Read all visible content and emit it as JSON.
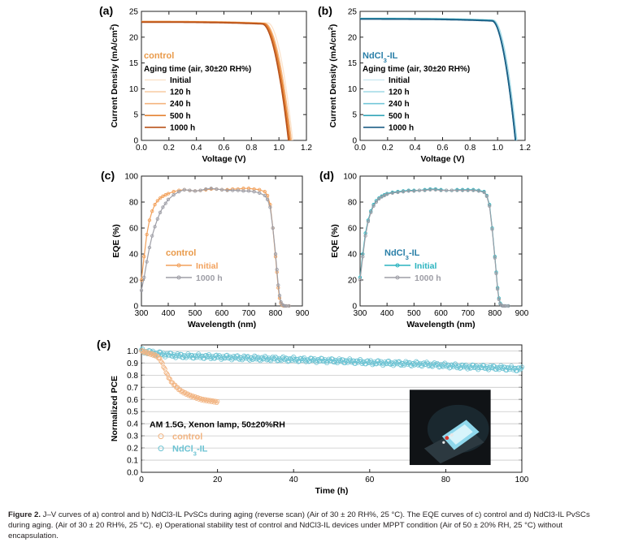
{
  "caption": {
    "label": "Figure 2.",
    "text": "J–V curves of a) control and b) NdCl3-IL PvSCs during aging (reverse scan) (Air of 30 ± 20 RH%, 25 °C). The EQE curves of c) control and d) NdCl3-IL PvSCs during aging. (Air of 30 ± 20 RH%, 25 °C). e) Operational stability test of control and NdCl3-IL devices under MPPT condition (Air of 50 ± 20% RH, 25 °C) without encapsulation."
  },
  "colors": {
    "control_aging": [
      "#fbe3cc",
      "#f8cfa8",
      "#f4b47e",
      "#e4802f",
      "#b9521a"
    ],
    "ndcl_aging": [
      "#cfeaf2",
      "#a6dbe7",
      "#73c7d8",
      "#2fa3b7",
      "#1d5f86"
    ],
    "eqe_control_initial": "#f2a15c",
    "eqe_ndcl_initial": "#2ab3bf",
    "eqe_1000h": "#9e9ea6",
    "mppt_control": "#f2b583",
    "mppt_ndcl": "#6cc3d3",
    "control_label": "#e99a4a",
    "ndcl_label": "#2a7fa8"
  },
  "chart_data": [
    {
      "panel": "(a)",
      "type": "line",
      "xlabel": "Voltage (V)",
      "ylabel": "Current Density (mA/cm²)",
      "xlim": [
        0.0,
        1.2
      ],
      "ylim": [
        0,
        25
      ],
      "xticks": [
        "0.0",
        "0.2",
        "0.4",
        "0.6",
        "0.8",
        "1.0",
        "1.2"
      ],
      "yticks": [
        "0",
        "5",
        "10",
        "15",
        "20",
        "25"
      ],
      "device_label": "control",
      "legend_title": "Aging time (air, 30±20 RH%)",
      "series": [
        {
          "name": "Initial",
          "jsc": 23.1,
          "voc": 1.1,
          "knee": 0.92
        },
        {
          "name": "120 h",
          "jsc": 23.0,
          "voc": 1.09,
          "knee": 0.9
        },
        {
          "name": "240 h",
          "jsc": 23.0,
          "voc": 1.09,
          "knee": 0.9
        },
        {
          "name": "500 h",
          "jsc": 23.0,
          "voc": 1.08,
          "knee": 0.89
        },
        {
          "name": "1000 h",
          "jsc": 22.9,
          "voc": 1.07,
          "knee": 0.88
        }
      ]
    },
    {
      "panel": "(b)",
      "type": "line",
      "xlabel": "Voltage (V)",
      "ylabel": "Current Density (mA/cm²)",
      "xlim": [
        0.0,
        1.2
      ],
      "ylim": [
        0,
        25
      ],
      "xticks": [
        "0.0",
        "0.2",
        "0.4",
        "0.6",
        "0.8",
        "1.0",
        "1.2"
      ],
      "yticks": [
        "0",
        "5",
        "10",
        "15",
        "20",
        "25"
      ],
      "device_label": "NdCl3-IL",
      "legend_title": "Aging time (air, 30±20 RH%)",
      "series": [
        {
          "name": "Initial",
          "jsc": 23.7,
          "voc": 1.14,
          "knee": 0.97
        },
        {
          "name": "120 h",
          "jsc": 23.6,
          "voc": 1.14,
          "knee": 0.97
        },
        {
          "name": "240 h",
          "jsc": 23.6,
          "voc": 1.13,
          "knee": 0.96
        },
        {
          "name": "500 h",
          "jsc": 23.6,
          "voc": 1.13,
          "knee": 0.96
        },
        {
          "name": "1000 h",
          "jsc": 23.5,
          "voc": 1.13,
          "knee": 0.96
        }
      ]
    },
    {
      "panel": "(c)",
      "type": "line",
      "xlabel": "Wavelength (nm)",
      "ylabel": "EQE (%)",
      "xlim": [
        300,
        900
      ],
      "ylim": [
        0,
        100
      ],
      "xticks": [
        "300",
        "400",
        "500",
        "600",
        "700",
        "800",
        "900"
      ],
      "yticks": [
        "0",
        "20",
        "40",
        "60",
        "80",
        "100"
      ],
      "device_label": "control",
      "x": [
        300,
        310,
        320,
        330,
        340,
        350,
        360,
        370,
        380,
        390,
        400,
        420,
        440,
        460,
        480,
        500,
        520,
        540,
        560,
        580,
        600,
        620,
        640,
        660,
        680,
        700,
        720,
        740,
        760,
        770,
        780,
        790,
        800,
        805,
        810,
        815,
        820,
        825,
        830,
        835,
        840,
        850
      ],
      "series": [
        {
          "name": "Initial",
          "values": [
            20,
            38,
            55,
            66,
            73,
            78,
            81,
            83,
            84.5,
            85.5,
            86.5,
            88,
            89,
            89.5,
            89,
            88.5,
            89,
            89.5,
            90,
            90,
            89.5,
            89.5,
            90,
            90,
            90.5,
            90.5,
            90,
            89.5,
            88,
            85,
            78,
            60,
            38,
            26,
            14,
            6,
            2,
            0.5,
            0,
            0,
            0,
            0
          ]
        },
        {
          "name": "1000 h",
          "values": [
            12,
            22,
            34,
            45,
            54,
            61,
            67,
            72,
            76,
            79,
            82,
            85.5,
            88,
            89.5,
            89,
            88.5,
            89,
            90,
            90.5,
            90,
            89.5,
            89,
            89,
            89,
            88.5,
            88.5,
            88,
            87,
            85,
            82,
            76,
            60,
            40,
            28,
            16,
            8,
            3,
            1,
            0.3,
            0,
            0,
            0
          ]
        }
      ]
    },
    {
      "panel": "(d)",
      "type": "line",
      "xlabel": "Wavelength (nm)",
      "ylabel": "EQE (%)",
      "xlim": [
        300,
        900
      ],
      "ylim": [
        0,
        100
      ],
      "xticks": [
        "300",
        "400",
        "500",
        "600",
        "700",
        "800",
        "900"
      ],
      "yticks": [
        "0",
        "20",
        "40",
        "60",
        "80",
        "100"
      ],
      "device_label": "NdCl3-IL",
      "x": [
        300,
        310,
        320,
        330,
        340,
        350,
        360,
        370,
        380,
        390,
        400,
        420,
        440,
        460,
        480,
        500,
        520,
        540,
        560,
        580,
        600,
        620,
        640,
        660,
        680,
        700,
        720,
        740,
        760,
        770,
        780,
        790,
        800,
        805,
        810,
        815,
        820,
        825,
        830,
        835,
        840,
        850
      ],
      "series": [
        {
          "name": "Initial",
          "values": [
            22,
            40,
            56,
            66,
            73,
            78,
            81,
            83,
            84.5,
            85.5,
            86.5,
            87.5,
            88,
            88.5,
            89,
            89,
            89,
            89.5,
            90,
            90,
            89.5,
            89,
            89,
            89.5,
            89.5,
            89.5,
            89.5,
            89,
            88,
            85,
            78,
            60,
            38,
            26,
            14,
            6,
            2,
            0.5,
            0,
            0,
            0,
            0
          ]
        },
        {
          "name": "1000 h",
          "values": [
            20,
            38,
            54,
            65,
            72,
            77,
            80,
            82.5,
            84,
            85,
            86,
            87,
            87.5,
            88,
            88.5,
            88.5,
            89,
            89,
            89.5,
            89.5,
            89,
            89,
            89,
            89,
            89,
            89,
            89,
            88.5,
            87.5,
            84.5,
            77,
            59,
            37,
            25,
            13,
            5,
            1.5,
            0.3,
            0,
            0,
            0,
            0
          ]
        }
      ]
    },
    {
      "panel": "(e)",
      "type": "scatter",
      "xlabel": "Time (h)",
      "ylabel": "Normalized  PCE",
      "xlim": [
        0,
        100
      ],
      "ylim": [
        0.0,
        1.05
      ],
      "xticks": [
        "0",
        "20",
        "40",
        "60",
        "80",
        "100"
      ],
      "yticks": [
        "0.0",
        "0.1",
        "0.2",
        "0.3",
        "0.4",
        "0.5",
        "0.6",
        "0.7",
        "0.8",
        "0.9",
        "1.0"
      ],
      "annotation": "AM 1.5G, Xenon lamp, 50±20%RH",
      "series": [
        {
          "name": "control",
          "x": [
            0,
            1,
            2,
            3,
            4,
            5,
            6,
            7,
            8,
            9,
            10,
            11,
            12,
            13,
            14,
            15,
            16,
            17,
            18,
            19,
            20
          ],
          "values": [
            1.0,
            0.99,
            0.98,
            0.97,
            0.96,
            0.93,
            0.86,
            0.79,
            0.74,
            0.71,
            0.68,
            0.66,
            0.645,
            0.63,
            0.62,
            0.61,
            0.6,
            0.595,
            0.59,
            0.585,
            0.58
          ]
        },
        {
          "name": "NdCl3-IL",
          "x": [
            0,
            5,
            10,
            15,
            20,
            25,
            30,
            35,
            40,
            45,
            50,
            55,
            60,
            65,
            70,
            75,
            80,
            85,
            90,
            95,
            100
          ],
          "values": [
            1.0,
            0.975,
            0.96,
            0.955,
            0.95,
            0.945,
            0.94,
            0.935,
            0.93,
            0.925,
            0.92,
            0.915,
            0.905,
            0.9,
            0.895,
            0.89,
            0.88,
            0.87,
            0.865,
            0.86,
            0.85
          ]
        }
      ]
    }
  ]
}
